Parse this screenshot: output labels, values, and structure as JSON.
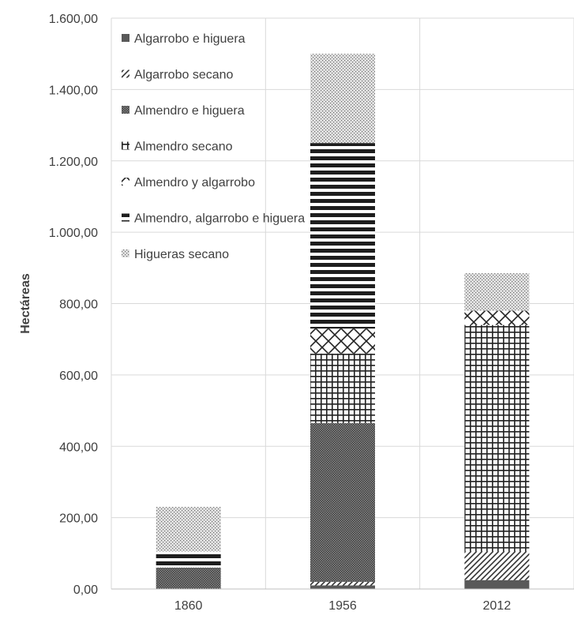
{
  "chart_data": {
    "type": "bar",
    "stacked": true,
    "categories": [
      "1860",
      "1956",
      "2012"
    ],
    "ylabel": "Hectáreas",
    "ylim": [
      0,
      1600
    ],
    "yticks": [
      "0,00",
      "200,00",
      "400,00",
      "600,00",
      "800,00",
      "1.000,00",
      "1.200,00",
      "1.400,00",
      "1.600,00"
    ],
    "grid": true,
    "legend_position": "top-left",
    "series": [
      {
        "name": "Algarrobo e higuera",
        "values": [
          0,
          10,
          25
        ],
        "pattern": "solid-dark"
      },
      {
        "name": "Algarrobo secano",
        "values": [
          0,
          10,
          80
        ],
        "pattern": "diagonal"
      },
      {
        "name": "Almendro e higuera",
        "values": [
          60,
          445,
          0
        ],
        "pattern": "dense-dots"
      },
      {
        "name": "Almendro secano",
        "values": [
          0,
          195,
          635
        ],
        "pattern": "grid"
      },
      {
        "name": "Almendro y algarrobo",
        "values": [
          0,
          70,
          40
        ],
        "pattern": "cross-hatch"
      },
      {
        "name": "Almendro, algarrobo e higuera",
        "values": [
          45,
          520,
          0
        ],
        "pattern": "horizontal-stripes"
      },
      {
        "name": "Higueras secano",
        "values": [
          125,
          250,
          105
        ],
        "pattern": "light-dots"
      }
    ]
  }
}
